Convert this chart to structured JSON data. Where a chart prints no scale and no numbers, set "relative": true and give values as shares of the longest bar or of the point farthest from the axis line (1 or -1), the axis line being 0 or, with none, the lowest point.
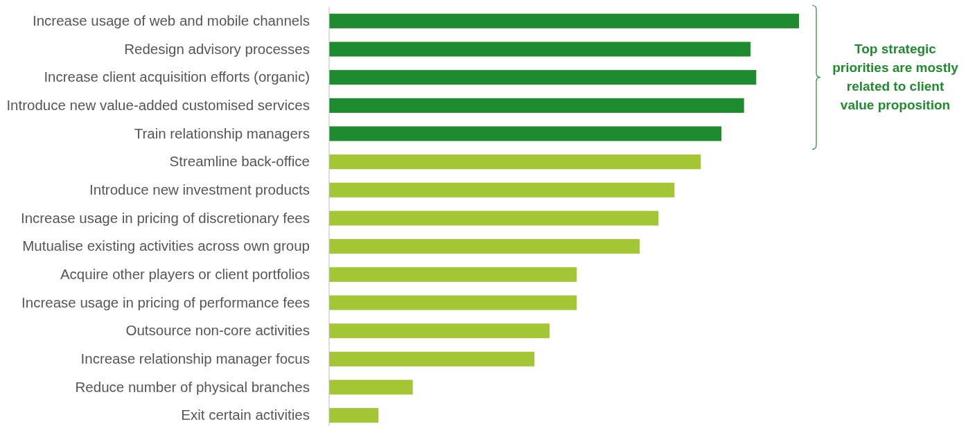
{
  "chart_data": {
    "type": "bar",
    "orientation": "horizontal",
    "relative": true,
    "categories": [
      "Increase usage of web and mobile channels",
      "Redesign advisory processes",
      "Increase client acquisition efforts (organic)",
      "Introduce new value-added customised services",
      "Train relationship managers",
      "Streamline back-office",
      "Introduce new investment products",
      "Increase usage in pricing of discretionary fees",
      "Mutualise existing activities across own group",
      "Acquire other players or client portfolios",
      "Increase usage in pricing of performance fees",
      "Outsource non-core activities",
      "Increase relationship manager focus",
      "Reduce number of physical branches",
      "Exit certain activities"
    ],
    "values": [
      1,
      0.897,
      0.909,
      0.883,
      0.835,
      0.791,
      0.735,
      0.701,
      0.661,
      0.527,
      0.527,
      0.469,
      0.437,
      0.178,
      0.105
    ],
    "colors": [
      "#1e8c2e",
      "#1e8c2e",
      "#1e8c2e",
      "#1e8c2e",
      "#1e8c2e",
      "#a2c634",
      "#a2c634",
      "#a2c634",
      "#a2c634",
      "#a2c634",
      "#a2c634",
      "#a2c634",
      "#a2c634",
      "#a2c634",
      "#a2c634"
    ],
    "annotations": [
      "Top strategic priorities are mostly related to client value proposition"
    ]
  }
}
